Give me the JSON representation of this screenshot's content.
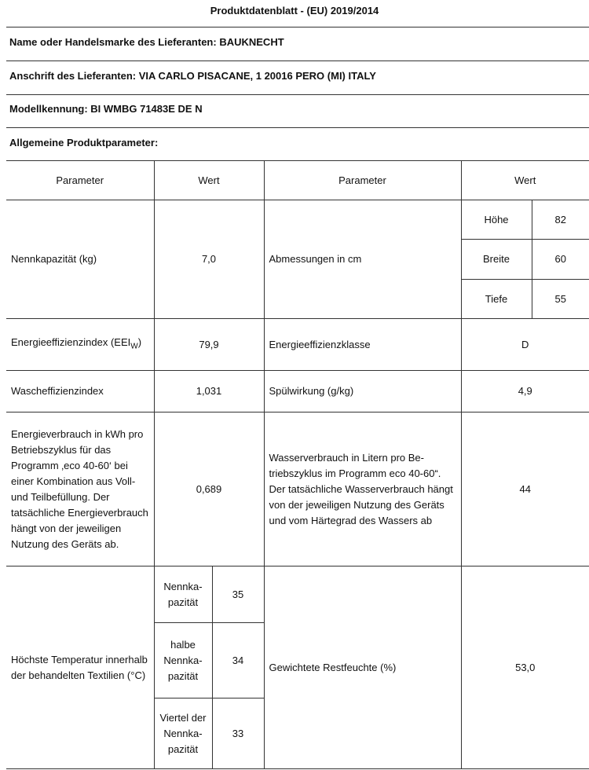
{
  "title": "Produktdatenblatt - (EU) 2019/2014",
  "supplier_name": "Name oder Handelsmarke des Lieferanten: BAUKNECHT",
  "supplier_address": "Anschrift des Lieferanten: VIA CARLO PISACANE, 1 20016 PERO (MI) ITALY",
  "model": "Modellkennung: BI WMBG 71483E DE N",
  "section": "Allgemeine Produktparameter:",
  "table": {
    "headers": [
      "Parameter",
      "Wert",
      "Parameter",
      "Wert"
    ],
    "capacity": {
      "label": "Nennkapazität (kg)",
      "value": "7,0"
    },
    "dimensions": {
      "label": "Abmessungen in cm",
      "items": [
        {
          "label": "Höhe",
          "value": "82"
        },
        {
          "label": "Breite",
          "value": "60"
        },
        {
          "label": "Tiefe",
          "value": "55"
        }
      ]
    },
    "eei": {
      "label": "Energieeffizienzindex (EEI",
      "sub": "W",
      "close": ")",
      "value": "79,9"
    },
    "eei_class": {
      "label": "Energieeffizienzklasse",
      "value": "D"
    },
    "washing_index": {
      "label": "Wascheffizienzindex",
      "value": "1,031"
    },
    "rinsing": {
      "label": "Spülwirkung (g/kg)",
      "value": "4,9"
    },
    "energy": {
      "label": "Energieverbrauch in kWh pro Betriebszyklus für das Programm ‚eco 40-60‘ bei einer Kombination aus Voll- und Teilbefüllung. Der tatsächliche Energiever­brauch hängt von der jew­eiligen Nutzung des Geräts ab.",
      "value": "0,689"
    },
    "water": {
      "label": "Wasserverbrauch in Litern pro Be­triebszyklus im Programm eco 40-60“. Der tatsächliche Wasserverbrauch hängt von der jeweiligen Nutzung des Geräts und vom Härtegrad des Wassers ab",
      "value": "44"
    },
    "temperature": {
      "label": "Höchste Temperatur inner­halb der behandelten Tex­tilien (°C)",
      "items": [
        {
          "label": "Nennka­pazität",
          "value": "35"
        },
        {
          "label": "halbe Nennka­pazität",
          "value": "34"
        },
        {
          "label": "Viertel der Nennka­pazität",
          "value": "33"
        }
      ]
    },
    "moisture": {
      "label": "Gewichtete Restfeuchte (%)",
      "value": "53,0"
    }
  }
}
